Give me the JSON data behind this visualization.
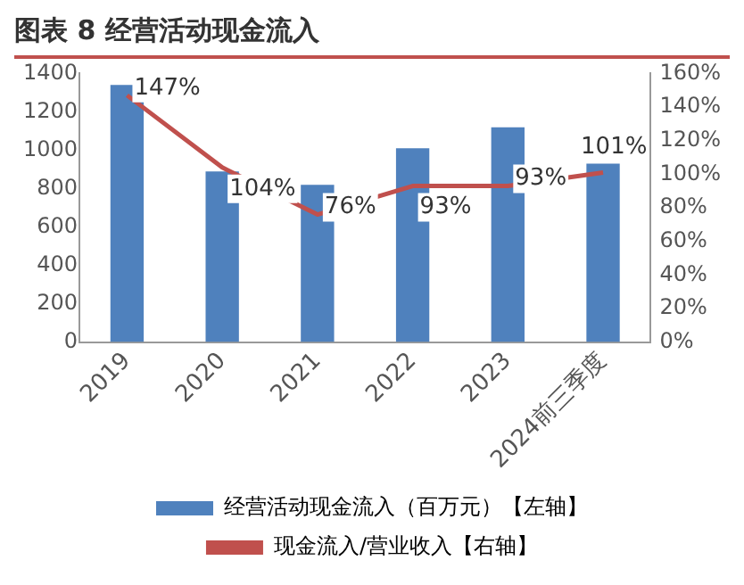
{
  "chart_data": {
    "type": "bar",
    "title": "图表 8  经营活动现金流入",
    "categories": [
      "2019",
      "2020",
      "2021",
      "2022",
      "2023",
      "2024前三季度"
    ],
    "series": [
      {
        "name": "经营活动现金流入（百万元）【左轴】",
        "color": "#4f81bd",
        "values": [
          1340,
          890,
          820,
          1010,
          1120,
          930
        ]
      },
      {
        "name": "现金流入/营业收入【右轴】",
        "type": "line",
        "axis": "y2",
        "color": "#c0504d",
        "marker": "none",
        "values": [
          147,
          104,
          76,
          93,
          93,
          101
        ],
        "value_labels": [
          "147%",
          "104%",
          "76%",
          "93%",
          "93%",
          "101%"
        ]
      }
    ],
    "ylim": [
      0,
      1400
    ],
    "yticks": [
      0,
      200,
      400,
      600,
      800,
      1000,
      1200,
      1400
    ],
    "y2lim": [
      0,
      160
    ],
    "y2ticks": [
      {
        "value": 0,
        "label": "0%"
      },
      {
        "value": 20,
        "label": "20%"
      },
      {
        "value": 40,
        "label": "40%"
      },
      {
        "value": 60,
        "label": "60%"
      },
      {
        "value": 80,
        "label": "80%"
      },
      {
        "value": 100,
        "label": "100%"
      },
      {
        "value": 120,
        "label": "120%"
      },
      {
        "value": 140,
        "label": "140%"
      },
      {
        "value": 160,
        "label": "160%"
      }
    ],
    "grid": false,
    "legend": "bottom"
  }
}
